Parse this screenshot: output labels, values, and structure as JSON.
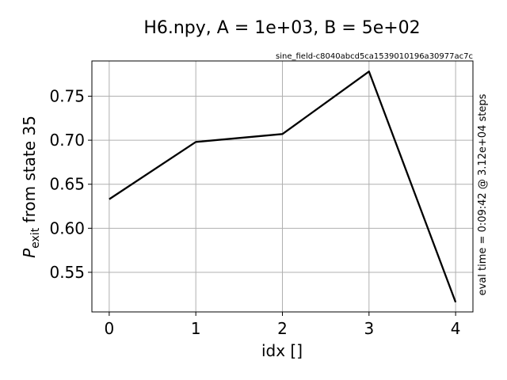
{
  "chart_data": {
    "type": "line",
    "title": "H6.npy, A = 1e+03,  B = 5e+02",
    "subtitle": "sine_field-c8040abcd5ca1539010196a30977ac7c",
    "xlabel": "idx []",
    "ylabel_main": "P",
    "ylabel_sub": "exit",
    "ylabel_rest": " from state 35",
    "right_label": "eval time = 0:09:42 @ 3.12e+04 steps",
    "x": [
      0,
      1,
      2,
      3,
      4
    ],
    "values": [
      0.633,
      0.698,
      0.707,
      0.778,
      0.516
    ],
    "xlim": [
      -0.2,
      4.2
    ],
    "ylim": [
      0.505,
      0.79
    ],
    "xticks": [
      0,
      1,
      2,
      3,
      4
    ],
    "xtick_labels": [
      "0",
      "1",
      "2",
      "3",
      "4"
    ],
    "yticks": [
      0.55,
      0.6,
      0.65,
      0.7,
      0.75
    ],
    "ytick_labels": [
      "0.55",
      "0.60",
      "0.65",
      "0.70",
      "0.75"
    ],
    "grid": true,
    "line_color": "#000000",
    "grid_color": "#b0b0b0"
  }
}
